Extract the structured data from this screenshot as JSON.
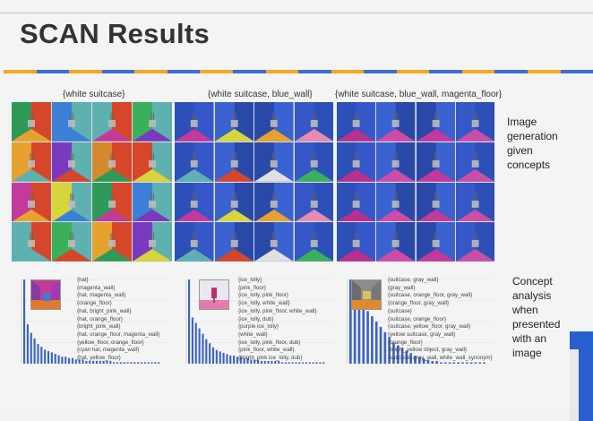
{
  "slide": {
    "title": "SCAN Results",
    "stripe_colors": [
      "#f5a623",
      "#3b6fd6",
      "#f5a623",
      "#3b6fd6",
      "#f5a623",
      "#3b6fd6",
      "#f5a623",
      "#3b6fd6",
      "#f5a623",
      "#3b6fd6",
      "#f5a623",
      "#3b6fd6",
      "#f5a623",
      "#3b6fd6",
      "#f5a623",
      "#3b6fd6",
      "#f5a623",
      "#3b6fd6"
    ]
  },
  "image_generation": {
    "columns": [
      {
        "label": "{white suitcase}"
      },
      {
        "label": "{white suitcase, blue_wall}"
      },
      {
        "label": "{white suitcase, blue_wall, magenta_floor}"
      }
    ],
    "side_label": [
      "Image",
      "generation",
      "given",
      "concepts"
    ]
  },
  "concept_analysis": {
    "side_label": [
      "Concept",
      "analysis",
      "when",
      "presented",
      "with an",
      "image"
    ],
    "panels": [
      {
        "concepts": [
          "{hat}",
          "{magenta_wall}",
          "{hat, magenta_wall}",
          "{orange_floor}",
          "{hat, bright_pink_wall}",
          "{hat, orange_floor}",
          "{bright_pink_wall}",
          "{hat, orange_floor, magenta_wall}",
          "{yellow_floor, orange_floor}",
          "{cyan hat, magenta_wall}",
          "{hat, yellow_floor}"
        ]
      },
      {
        "concepts": [
          "{ice_lolly}",
          "{pink_floor}",
          "{ice_lolly, pink_floor}",
          "{ice_lolly, white_wall}",
          "{ice_lolly, pink_floor, white_wall}",
          "{ice_lolly, dub}",
          "{purple ice_lolly}",
          "{white_wall}",
          "{ice_lolly, pink_floor, dub}",
          "{pink_floor, white_wall}",
          "{bright_pink ice_lolly, dub}"
        ]
      },
      {
        "concepts": [
          "{suitcase, gray_wall}",
          "{gray_wall}",
          "{suitcase, orange_floor, gray_wall}",
          "{orange_floor, gray_wall}",
          "{suitcase}",
          "{suitcase, orange_floor}",
          "{suitcase, yellow_floor, gray_wall}",
          "{yellow suitcase, gray_wall}",
          "{orange_floor}",
          "{bright_yellow object, gray_wall}",
          "{suitcase, gray_wall, white_wall_synonym}"
        ]
      }
    ]
  },
  "chart_data": [
    {
      "type": "bar",
      "values": [
        60,
        28,
        22,
        18,
        14,
        12,
        10,
        9,
        8,
        7,
        6,
        5,
        5,
        4,
        4,
        3,
        3,
        3,
        2,
        2,
        2,
        2,
        2,
        2,
        2,
        2,
        1,
        1,
        1,
        1,
        1,
        1,
        1,
        1,
        1,
        1,
        1,
        1,
        1,
        1
      ]
    },
    {
      "type": "bar",
      "values": [
        62,
        34,
        30,
        26,
        22,
        18,
        15,
        12,
        10,
        9,
        8,
        7,
        6,
        6,
        5,
        5,
        4,
        4,
        3,
        3,
        3,
        2,
        2,
        2,
        2,
        2,
        2,
        1,
        1,
        1,
        1,
        1,
        1,
        1,
        1,
        1,
        1,
        1,
        1,
        1
      ]
    },
    {
      "type": "bar",
      "values": [
        64,
        56,
        50,
        44,
        40,
        36,
        32,
        28,
        24,
        20,
        16,
        14,
        12,
        10,
        8,
        6,
        5,
        4,
        3,
        2,
        2,
        1,
        1,
        1,
        1,
        1,
        1,
        1,
        1,
        1,
        1,
        1
      ]
    }
  ]
}
